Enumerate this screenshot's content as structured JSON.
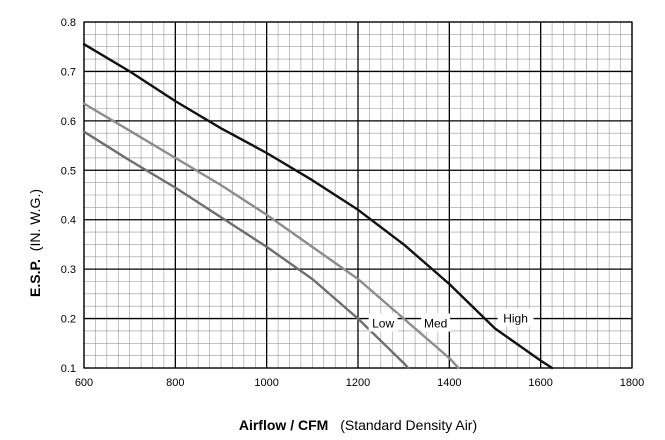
{
  "chart_data": {
    "type": "line",
    "title": "",
    "xlabel_main": "Airflow / CFM",
    "xlabel_sub": "(Standard Density Air)",
    "ylabel_main": "E.S.P.",
    "ylabel_sub": "(IN. W.G.)",
    "xlim": [
      600,
      1800
    ],
    "ylim": [
      0.1,
      0.8
    ],
    "x_major_ticks": [
      600,
      800,
      1000,
      1200,
      1400,
      1600,
      1800
    ],
    "y_major_ticks": [
      0.1,
      0.2,
      0.3,
      0.4,
      0.5,
      0.6,
      0.7,
      0.8
    ],
    "x_tick_labels": [
      "600",
      "800",
      "1000",
      "1200",
      "1400",
      "1600",
      "1800"
    ],
    "y_tick_labels": [
      "0.1",
      "0.2",
      "0.3",
      "0.4",
      "0.5",
      "0.6",
      "0.7",
      "0.8"
    ],
    "grid": true,
    "series": [
      {
        "name": "High",
        "color": "#111111",
        "x": [
          600,
          700,
          800,
          900,
          1000,
          1100,
          1200,
          1300,
          1400,
          1500,
          1600,
          1625
        ],
        "y": [
          0.755,
          0.7,
          0.64,
          0.585,
          0.535,
          0.48,
          0.42,
          0.35,
          0.27,
          0.18,
          0.115,
          0.1
        ]
      },
      {
        "name": "Med",
        "color": "#8c8c8c",
        "x": [
          600,
          700,
          800,
          900,
          1000,
          1100,
          1200,
          1300,
          1400,
          1420
        ],
        "y": [
          0.635,
          0.58,
          0.525,
          0.47,
          0.41,
          0.345,
          0.28,
          0.2,
          0.12,
          0.1
        ]
      },
      {
        "name": "Low",
        "color": "#6e6e6e",
        "x": [
          600,
          700,
          800,
          900,
          1000,
          1100,
          1200,
          1300,
          1310
        ],
        "y": [
          0.578,
          0.52,
          0.465,
          0.405,
          0.345,
          0.28,
          0.2,
          0.11,
          0.1
        ]
      }
    ],
    "series_labels": [
      {
        "text": "Low",
        "x": 1255,
        "y": 0.19
      },
      {
        "text": "Med",
        "x": 1370,
        "y": 0.19
      },
      {
        "text": "High",
        "x": 1545,
        "y": 0.2
      }
    ]
  }
}
